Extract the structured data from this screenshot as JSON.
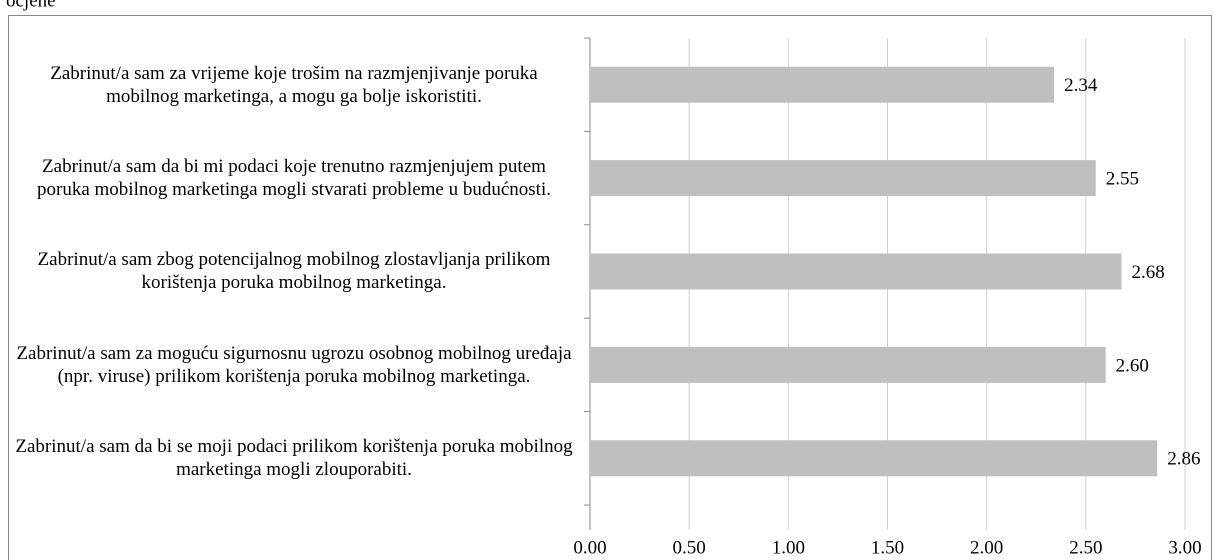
{
  "chart_data": {
    "type": "bar",
    "orientation": "horizontal",
    "title": "ocjene",
    "categories": [
      "Zabrinut/a sam za vrijeme koje trošim na razmjenjivanje poruka mobilnog marketinga, a mogu ga bolje iskoristiti.",
      "Zabrinut/a sam da bi mi podaci koje trenutno razmjenjujem putem poruka mobilnog marketinga mogli stvarati probleme u budućnosti.",
      "Zabrinut/a sam zbog potencijalnog mobilnog zlostavljanja prilikom korištenja poruka mobilnog marketinga.",
      "Zabrinut/a sam za moguću sigurnosnu ugrozu osobnog mobilnog uređaja (npr. viruse) prilikom korištenja poruka mobilnog marketinga.",
      "Zabrinut/a sam da bi se moji podaci prilikom korištenja poruka mobilnog marketinga mogli zlouporabiti."
    ],
    "values": [
      2.34,
      2.55,
      2.68,
      2.6,
      2.86
    ],
    "value_labels": [
      "2.34",
      "2.55",
      "2.68",
      "2.60",
      "2.86"
    ],
    "color": "#bfbfbf",
    "xlim": [
      0,
      3
    ],
    "xticks": [
      {
        "value": 0,
        "label": "0.00"
      },
      {
        "value": 0.5,
        "label": "0.50"
      },
      {
        "value": 1,
        "label": "1.00"
      },
      {
        "value": 1.5,
        "label": "1.50"
      },
      {
        "value": 2,
        "label": "2.00"
      },
      {
        "value": 2.5,
        "label": "2.50"
      },
      {
        "value": 3,
        "label": "3.00"
      }
    ],
    "grid": true
  }
}
